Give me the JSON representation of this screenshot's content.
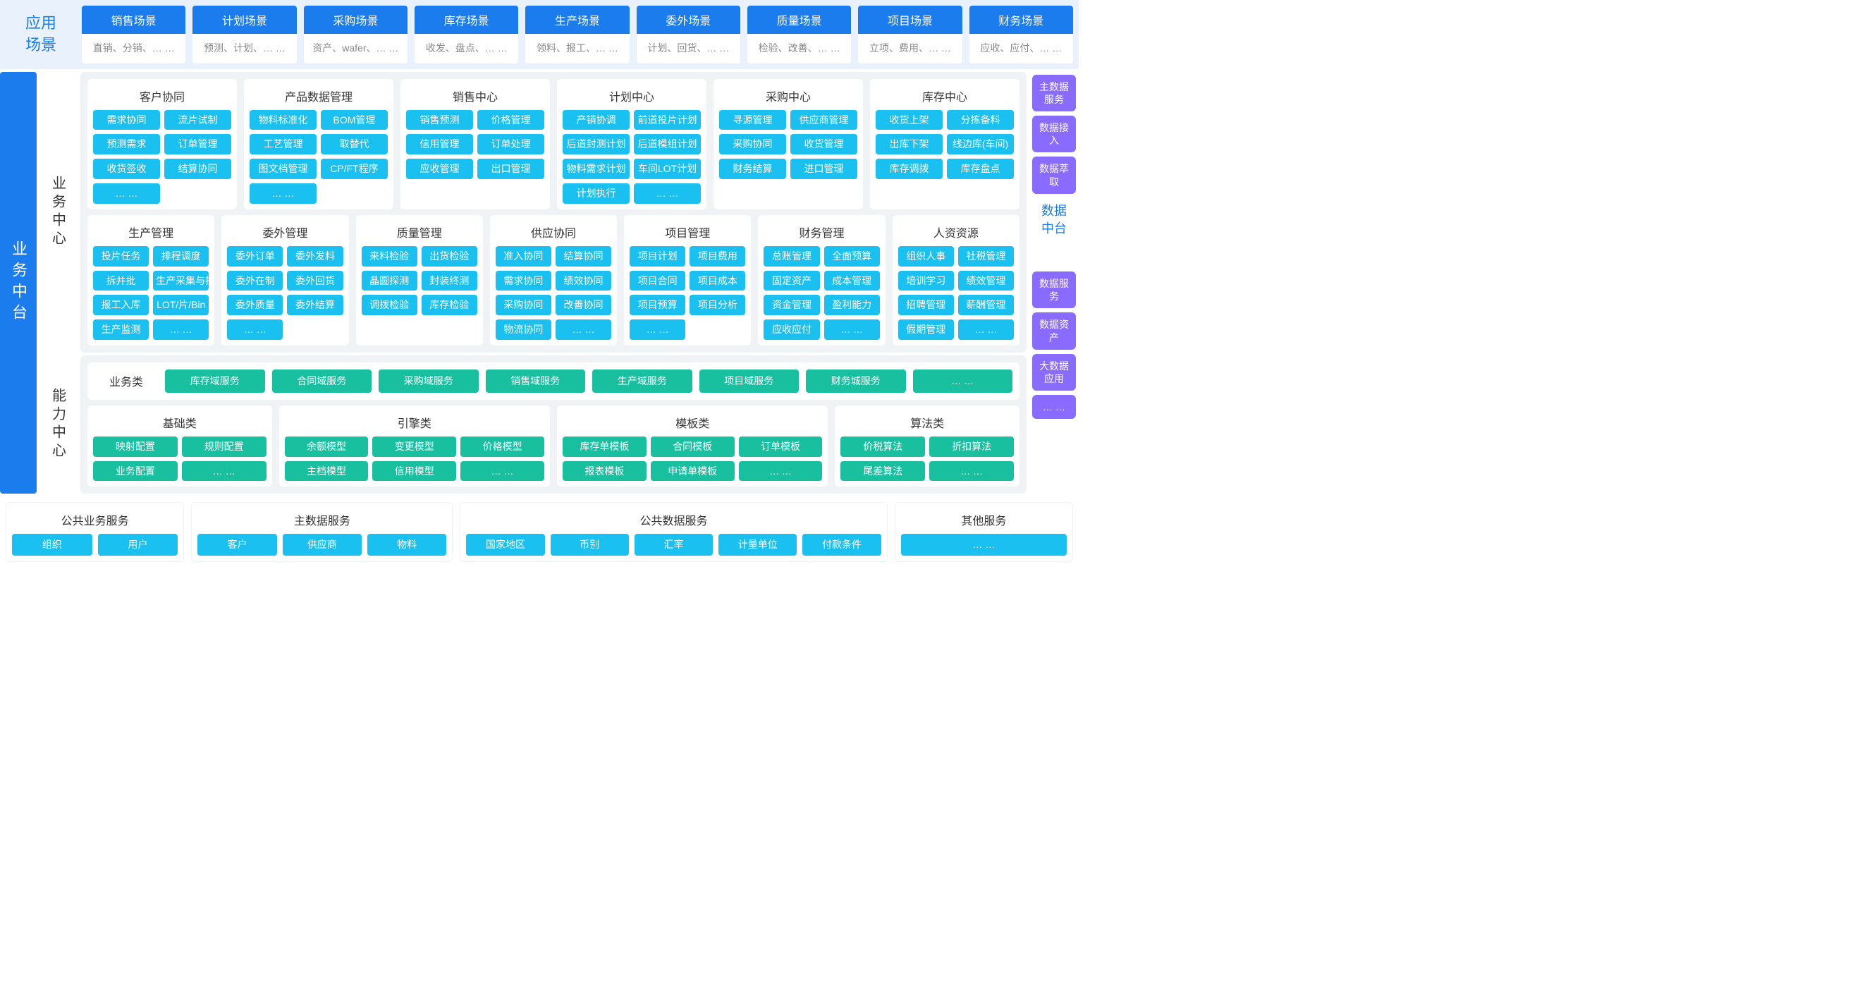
{
  "colors": {
    "blue": "#1b7ced",
    "cyan": "#19c0f0",
    "teal": "#19c0a0",
    "purple": "#8a6bff",
    "bgLight": "#e8f1fc",
    "panel": "#f0f3f5"
  },
  "ellipsis": "… …",
  "appScenario": {
    "label": "应用\n场景",
    "cards": [
      {
        "title": "销售场景",
        "sub": "直销、分销、… …"
      },
      {
        "title": "计划场景",
        "sub": "预测、计划、… …"
      },
      {
        "title": "采购场景",
        "sub": "资产、wafer、… …"
      },
      {
        "title": "库存场景",
        "sub": "收发、盘点、… …"
      },
      {
        "title": "生产场景",
        "sub": "领料、报工、… …"
      },
      {
        "title": "委外场景",
        "sub": "计划、回货、… …"
      },
      {
        "title": "质量场景",
        "sub": "检验、改善、… …"
      },
      {
        "title": "项目场景",
        "sub": "立项、费用、… …"
      },
      {
        "title": "财务场景",
        "sub": "应收、应付、… …"
      }
    ]
  },
  "bizPlatformLabel": "业务中台",
  "bizCenterLabel": "业务中心",
  "capCenterLabel": "能力中心",
  "dataPlatformLabel": "数据\n中台",
  "purpleTop": [
    "主数据服务",
    "数据接入",
    "数据萃取"
  ],
  "purpleBottom": [
    "数据服务",
    "数据资产",
    "大数据应用",
    "… …"
  ],
  "bizTop": [
    {
      "title": "客户协同",
      "cols": 2,
      "items": [
        "需求协同",
        "流片试制",
        "预测需求",
        "订单管理",
        "收货签收",
        "结算协同",
        "… …",
        ""
      ]
    },
    {
      "title": "产品数据管理",
      "cols": 2,
      "items": [
        "物料标准化",
        "BOM管理",
        "工艺管理",
        "取替代",
        "图文档管理",
        "CP/FT程序",
        "… …",
        ""
      ]
    },
    {
      "title": "销售中心",
      "cols": 2,
      "items": [
        "销售预测",
        "价格管理",
        "信用管理",
        "订单处理",
        "应收管理",
        "出口管理"
      ]
    },
    {
      "title": "计划中心",
      "cols": 2,
      "items": [
        "产销协调",
        "前道投片计划",
        "后道封测计划",
        "后道模组计划",
        "物料需求计划",
        "车间LOT计划",
        "计划执行",
        "… …"
      ]
    },
    {
      "title": "采购中心",
      "cols": 2,
      "items": [
        "寻源管理",
        "供应商管理",
        "采购协同",
        "收货管理",
        "财务结算",
        "进口管理"
      ]
    },
    {
      "title": "库存中心",
      "cols": 2,
      "items": [
        "收货上架",
        "分拣备料",
        "出库下架",
        "线边库(车间)",
        "库存调拨",
        "库存盘点"
      ]
    }
  ],
  "bizBot": [
    {
      "title": "生产管理",
      "cols": 2,
      "items": [
        "投片任务",
        "排程调度",
        "拆并批",
        "生产采集与控制",
        "报工入库",
        "LOT/片/Bin",
        "生产监测",
        "… …"
      ]
    },
    {
      "title": "委外管理",
      "cols": 2,
      "items": [
        "委外订单",
        "委外发料",
        "委外在制",
        "委外回货",
        "委外质量",
        "委外结算",
        "… …",
        ""
      ]
    },
    {
      "title": "质量管理",
      "cols": 2,
      "items": [
        "来料检验",
        "出货检验",
        "晶圆探测",
        "封装终测",
        "调拨检验",
        "库存检验"
      ]
    },
    {
      "title": "供应协同",
      "cols": 2,
      "items": [
        "准入协同",
        "结算协同",
        "需求协同",
        "绩效协同",
        "采购协同",
        "改善协同",
        "物流协同",
        "… …"
      ]
    },
    {
      "title": "项目管理",
      "cols": 2,
      "items": [
        "项目计划",
        "项目费用",
        "项目合同",
        "项目成本",
        "项目预算",
        "项目分析",
        "… …",
        ""
      ]
    },
    {
      "title": "财务管理",
      "cols": 2,
      "items": [
        "总账管理",
        "全面预算",
        "固定资产",
        "成本管理",
        "资金管理",
        "盈利能力",
        "应收应付",
        "… …"
      ]
    },
    {
      "title": "人资资源",
      "cols": 2,
      "items": [
        "组织人事",
        "社税管理",
        "培训学习",
        "绩效管理",
        "招聘管理",
        "薪酬管理",
        "假期管理",
        "… …"
      ]
    }
  ],
  "capBiz": {
    "label": "业务类",
    "items": [
      "库存域服务",
      "合同域服务",
      "采购域服务",
      "销售域服务",
      "生产域服务",
      "项目域服务",
      "财务城服务",
      "… …"
    ]
  },
  "capCats": [
    {
      "title": "基础类",
      "w": 2,
      "items": [
        "映射配置",
        "规则配置",
        "业务配置",
        "… …"
      ]
    },
    {
      "title": "引擎类",
      "w": 3,
      "items": [
        "余额模型",
        "变更模型",
        "价格模型",
        "主档模型",
        "信用模型",
        "… …"
      ]
    },
    {
      "title": "模板类",
      "w": 3,
      "items": [
        "库存单模板",
        "合同模板",
        "订单模板",
        "报表模板",
        "申请单模板",
        "… …"
      ]
    },
    {
      "title": "算法类",
      "w": 2,
      "items": [
        "价税算法",
        "折扣算法",
        "尾差算法",
        "… …"
      ]
    }
  ],
  "svc": [
    {
      "title": "公共业务服务",
      "w": 2,
      "items": [
        "组织",
        "用户"
      ]
    },
    {
      "title": "主数据服务",
      "w": 3,
      "items": [
        "客户",
        "供应商",
        "物料"
      ]
    },
    {
      "title": "公共数据服务",
      "w": 5,
      "items": [
        "国家地区",
        "币别",
        "汇率",
        "计量单位",
        "付款条件"
      ]
    },
    {
      "title": "其他服务",
      "w": 2,
      "items": [
        "… …"
      ]
    }
  ]
}
